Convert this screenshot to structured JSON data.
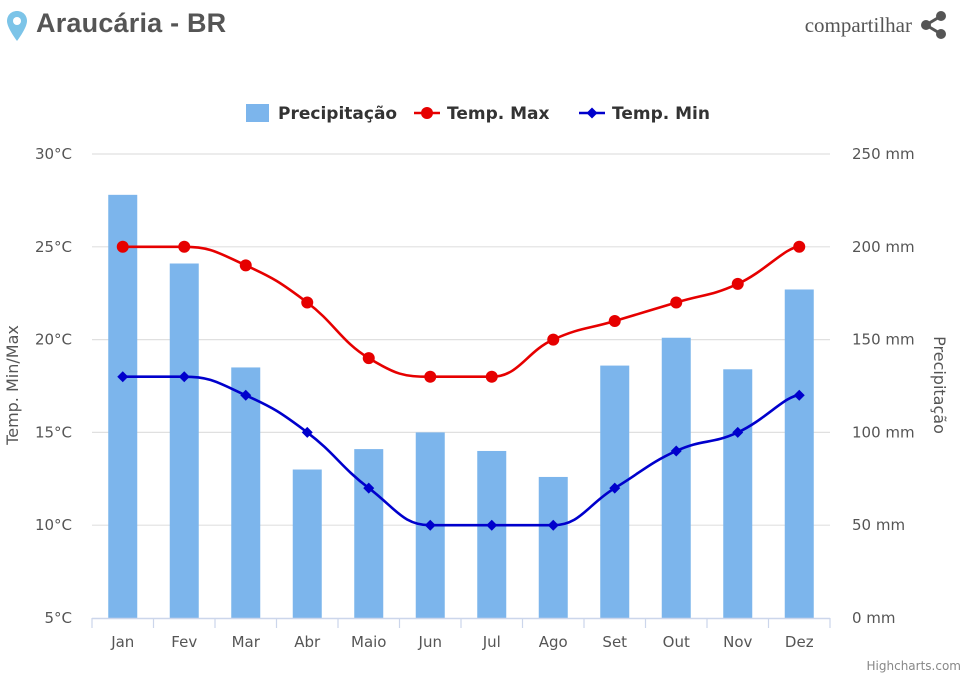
{
  "header": {
    "title": "Araucária - BR",
    "share_label": "compartilhar",
    "pin_icon": "map-pin-icon",
    "share_icon": "share-icon",
    "pin_color": "#7cc4e8",
    "text_color": "#555555"
  },
  "legend": {
    "precip": "Precipitação",
    "tmax": "Temp. Max",
    "tmin": "Temp. Min"
  },
  "axes": {
    "left_title": "Temp. Min/Max",
    "right_title": "Precipitação"
  },
  "credits": "Highcharts.com",
  "chart_data": {
    "type": "bar",
    "categories": [
      "Jan",
      "Fev",
      "Mar",
      "Abr",
      "Maio",
      "Jun",
      "Jul",
      "Ago",
      "Set",
      "Out",
      "Nov",
      "Dez"
    ],
    "left_axis": {
      "ylim": [
        5,
        30
      ],
      "ticks": [
        5,
        10,
        15,
        20,
        25,
        30
      ],
      "tick_labels": [
        "5°C",
        "10°C",
        "15°C",
        "20°C",
        "25°C",
        "30°C"
      ]
    },
    "right_axis": {
      "ylim": [
        0,
        250
      ],
      "ticks": [
        0,
        50,
        100,
        150,
        200,
        250
      ],
      "tick_labels": [
        "0 mm",
        "50 mm",
        "100 mm",
        "150 mm",
        "200 mm",
        "250 mm"
      ]
    },
    "grid": true,
    "legend_position": "top-center",
    "series": [
      {
        "name": "Precipitação",
        "type": "bar",
        "axis": "right",
        "color": "#7cb5ec",
        "values": [
          228,
          191,
          135,
          80,
          91,
          100,
          90,
          76,
          136,
          151,
          134,
          177
        ]
      },
      {
        "name": "Temp. Max",
        "type": "line",
        "axis": "left",
        "color": "#e60000",
        "marker": "circle",
        "values": [
          25,
          25,
          24,
          22,
          19,
          18,
          18,
          20,
          21,
          22,
          23,
          25
        ]
      },
      {
        "name": "Temp. Min",
        "type": "line",
        "axis": "left",
        "color": "#0000cc",
        "marker": "diamond",
        "values": [
          18,
          18,
          17,
          15,
          12,
          10,
          10,
          10,
          12,
          14,
          15,
          17
        ]
      }
    ]
  }
}
